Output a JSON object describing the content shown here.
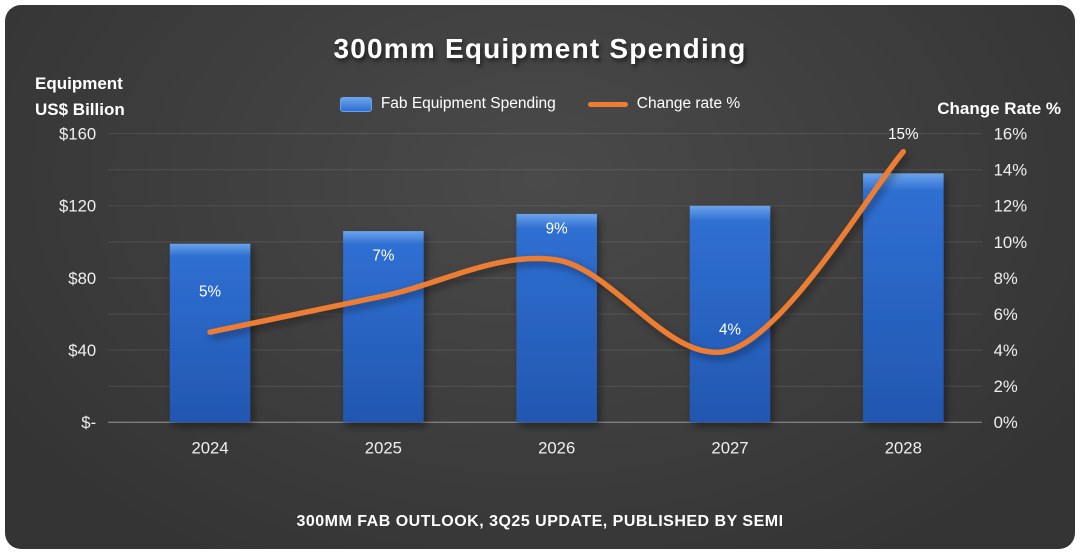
{
  "chart": {
    "title": "300mm Equipment Spending",
    "left_axis_title": "Equipment US$ Billion",
    "right_axis_title": "Change Rate %",
    "footer": "300MM FAB OUTLOOK, 3Q25 UPDATE, PUBLISHED BY SEMI",
    "legend": [
      {
        "label": "Fab Equipment Spending",
        "type": "bar",
        "icon": "bar-swatch-icon"
      },
      {
        "label": "Change rate %",
        "type": "line",
        "icon": "line-swatch-icon"
      }
    ]
  },
  "chart_data": {
    "type": "combo",
    "categories": [
      "2024",
      "2025",
      "2026",
      "2027",
      "2028"
    ],
    "series": [
      {
        "name": "Fab Equipment Spending",
        "type": "bar",
        "axis": "left",
        "unit": "US$ Billion",
        "values": [
          99,
          106,
          115.5,
          120,
          138
        ]
      },
      {
        "name": "Change rate %",
        "type": "line",
        "axis": "right",
        "unit": "%",
        "values": [
          5,
          7,
          9,
          4,
          15
        ],
        "labels": [
          "5%",
          "7%",
          "9%",
          "4%",
          "15%"
        ]
      }
    ],
    "left_axis": {
      "ticks": [
        "$160",
        "$120",
        "$80",
        "$40",
        "$-"
      ],
      "tick_values": [
        160,
        120,
        80,
        40,
        0
      ],
      "range": [
        0,
        160
      ]
    },
    "right_axis": {
      "ticks": [
        "16%",
        "14%",
        "12%",
        "10%",
        "8%",
        "6%",
        "4%",
        "2%",
        "0%"
      ],
      "tick_values": [
        16,
        14,
        12,
        10,
        8,
        6,
        4,
        2,
        0
      ],
      "range": [
        0,
        16
      ]
    },
    "grid": true,
    "legend_position": "top"
  },
  "colors": {
    "bar": "#2f6fd2",
    "bar_light": "#6ba3ea",
    "bar_dark": "#2257b0",
    "line": "#ED7D31",
    "canvas_inner": "#4a4a4a",
    "canvas_outer": "#343434",
    "text": "#ffffff",
    "tick_text": "#efefef",
    "grid": "rgba(255,255,255,0.10)",
    "axis": "rgba(255,255,255,0.35)"
  }
}
